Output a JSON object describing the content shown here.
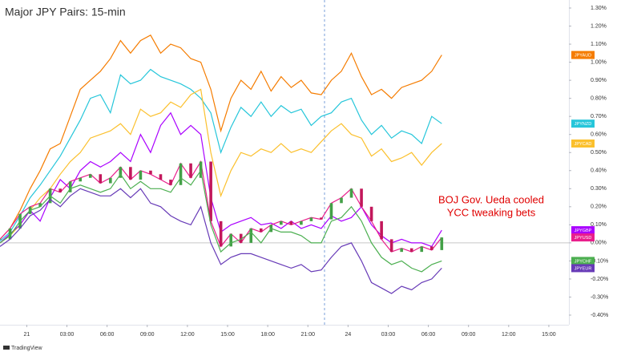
{
  "chart_data": {
    "type": "line",
    "title": "Major JPY Pairs: 15-min",
    "x": [
      0,
      3,
      6,
      9,
      12,
      15,
      18,
      21,
      24,
      27,
      30,
      33,
      36,
      39,
      42,
      45,
      48,
      51,
      54,
      57,
      60,
      63,
      66,
      69,
      72,
      75,
      78,
      81,
      84,
      87,
      90,
      93,
      96,
      99,
      102,
      105,
      108,
      111,
      114,
      117,
      120,
      123,
      126,
      129,
      132
    ],
    "xlim": [
      0,
      170
    ],
    "xticks": [
      {
        "value": 8,
        "label": "21"
      },
      {
        "value": 20,
        "label": "03:00"
      },
      {
        "value": 32,
        "label": "06:00"
      },
      {
        "value": 44,
        "label": "09:00"
      },
      {
        "value": 56,
        "label": "12:00"
      },
      {
        "value": 68,
        "label": "15:00"
      },
      {
        "value": 80,
        "label": "18:00"
      },
      {
        "value": 92,
        "label": "21:00"
      },
      {
        "value": 104,
        "label": "24"
      },
      {
        "value": 116,
        "label": "03:00"
      },
      {
        "value": 128,
        "label": "06:00"
      },
      {
        "value": 140,
        "label": "09:00"
      },
      {
        "value": 152,
        "label": "12:00"
      },
      {
        "value": 164,
        "label": "15:00"
      }
    ],
    "ylim": [
      -0.4,
      1.3
    ],
    "yticks": [
      {
        "value": 1.3,
        "label": "1.30%"
      },
      {
        "value": 1.2,
        "label": "1.20%"
      },
      {
        "value": 1.1,
        "label": "1.10%"
      },
      {
        "value": 1.0,
        "label": "1.00%"
      },
      {
        "value": 0.9,
        "label": "0.90%"
      },
      {
        "value": 0.8,
        "label": "0.80%"
      },
      {
        "value": 0.7,
        "label": "0.70%"
      },
      {
        "value": 0.6,
        "label": "0.60%"
      },
      {
        "value": 0.5,
        "label": "0.50%"
      },
      {
        "value": 0.4,
        "label": "0.40%"
      },
      {
        "value": 0.3,
        "label": "0.30%"
      },
      {
        "value": 0.2,
        "label": "0.20%"
      },
      {
        "value": 0.1,
        "label": "0.10%"
      },
      {
        "value": 0,
        "label": "0.00%"
      },
      {
        "value": -0.1,
        "label": "-0.10%"
      },
      {
        "value": -0.2,
        "label": "-0.20%"
      },
      {
        "value": -0.3,
        "label": "-0.30%"
      },
      {
        "value": -0.4,
        "label": "-0.40%"
      }
    ],
    "grid": false,
    "series": [
      {
        "name": "JPYAUD",
        "color": "#f57c00",
        "values": [
          0.02,
          0.08,
          0.18,
          0.3,
          0.4,
          0.52,
          0.55,
          0.7,
          0.85,
          0.9,
          0.95,
          1.02,
          1.12,
          1.05,
          1.12,
          1.15,
          1.05,
          1.1,
          1.08,
          1.02,
          1.0,
          0.85,
          0.62,
          0.8,
          0.9,
          0.85,
          0.95,
          0.84,
          0.92,
          0.86,
          0.9,
          0.83,
          0.82,
          0.9,
          0.95,
          1.05,
          0.92,
          0.82,
          0.85,
          0.8,
          0.86,
          0.88,
          0.9,
          0.95,
          1.04
        ]
      },
      {
        "name": "JPYNZD",
        "color": "#26c6da",
        "values": [
          0.01,
          0.06,
          0.15,
          0.25,
          0.32,
          0.4,
          0.48,
          0.58,
          0.68,
          0.8,
          0.82,
          0.72,
          0.93,
          0.88,
          0.9,
          0.96,
          0.92,
          0.9,
          0.88,
          0.85,
          0.8,
          0.72,
          0.5,
          0.64,
          0.75,
          0.7,
          0.78,
          0.7,
          0.76,
          0.72,
          0.74,
          0.65,
          0.7,
          0.72,
          0.78,
          0.8,
          0.68,
          0.6,
          0.65,
          0.58,
          0.62,
          0.6,
          0.55,
          0.7,
          0.66
        ]
      },
      {
        "name": "JPYCAD",
        "color": "#fbc02d",
        "values": [
          0.0,
          0.04,
          0.1,
          0.18,
          0.25,
          0.3,
          0.38,
          0.45,
          0.5,
          0.58,
          0.6,
          0.62,
          0.66,
          0.6,
          0.74,
          0.7,
          0.72,
          0.78,
          0.75,
          0.82,
          0.85,
          0.5,
          0.26,
          0.4,
          0.5,
          0.48,
          0.52,
          0.5,
          0.55,
          0.5,
          0.52,
          0.5,
          0.56,
          0.62,
          0.66,
          0.6,
          0.58,
          0.48,
          0.52,
          0.45,
          0.47,
          0.5,
          0.43,
          0.5,
          0.55
        ]
      },
      {
        "name": "JPYGBP",
        "color": "#aa00ff",
        "values": [
          0.0,
          0.05,
          0.1,
          0.18,
          0.12,
          0.25,
          0.35,
          0.3,
          0.4,
          0.45,
          0.42,
          0.45,
          0.5,
          0.45,
          0.6,
          0.5,
          0.65,
          0.72,
          0.6,
          0.65,
          0.6,
          0.25,
          0.06,
          0.1,
          0.12,
          0.14,
          0.1,
          0.11,
          0.08,
          0.12,
          0.08,
          0.1,
          0.08,
          0.15,
          0.12,
          0.14,
          0.2,
          0.1,
          0.04,
          0.0,
          0.02,
          0.0,
          0.0,
          -0.02,
          0.07
        ]
      },
      {
        "name": "JPYUSD",
        "color": "#e91e8c",
        "style": "candlestick",
        "up_color": "#43a047",
        "down_color": "#c2185b",
        "values": [
          0.02,
          0.08,
          0.16,
          0.2,
          0.22,
          0.3,
          0.28,
          0.34,
          0.36,
          0.38,
          0.33,
          0.36,
          0.42,
          0.35,
          0.4,
          0.38,
          0.35,
          0.32,
          0.44,
          0.36,
          0.45,
          0.12,
          -0.02,
          0.05,
          0.0,
          0.08,
          0.06,
          0.1,
          0.12,
          0.1,
          0.12,
          0.14,
          0.13,
          0.22,
          0.25,
          0.3,
          0.2,
          0.12,
          0.02,
          -0.05,
          -0.03,
          -0.05,
          -0.02,
          -0.04,
          0.03
        ]
      },
      {
        "name": "JPYCHF",
        "color": "#4caf50",
        "values": [
          0.0,
          0.04,
          0.12,
          0.18,
          0.2,
          0.26,
          0.22,
          0.3,
          0.32,
          0.3,
          0.28,
          0.3,
          0.38,
          0.3,
          0.34,
          0.3,
          0.3,
          0.28,
          0.36,
          0.32,
          0.4,
          0.1,
          -0.05,
          0.0,
          0.02,
          0.06,
          0.0,
          0.08,
          0.06,
          0.06,
          0.04,
          0.0,
          0.0,
          0.12,
          0.14,
          0.2,
          0.12,
          0.0,
          -0.08,
          -0.12,
          -0.1,
          -0.14,
          -0.16,
          -0.12,
          -0.1
        ]
      },
      {
        "name": "JPYEUR",
        "color": "#673ab7",
        "values": [
          -0.02,
          0.02,
          0.08,
          0.15,
          0.18,
          0.24,
          0.2,
          0.26,
          0.3,
          0.28,
          0.26,
          0.26,
          0.3,
          0.25,
          0.3,
          0.22,
          0.2,
          0.15,
          0.12,
          0.1,
          0.2,
          0.0,
          -0.12,
          -0.08,
          -0.06,
          -0.06,
          -0.08,
          -0.1,
          -0.12,
          -0.14,
          -0.12,
          -0.16,
          -0.15,
          -0.08,
          -0.02,
          0.0,
          -0.1,
          -0.22,
          -0.25,
          -0.28,
          -0.24,
          -0.26,
          -0.22,
          -0.2,
          -0.14
        ]
      }
    ],
    "annotation": [
      "BOJ Gov. Ueda cooled",
      "YCC tweaking bets"
    ],
    "annotation_color": "#e00000"
  },
  "watermark": "TradingView"
}
